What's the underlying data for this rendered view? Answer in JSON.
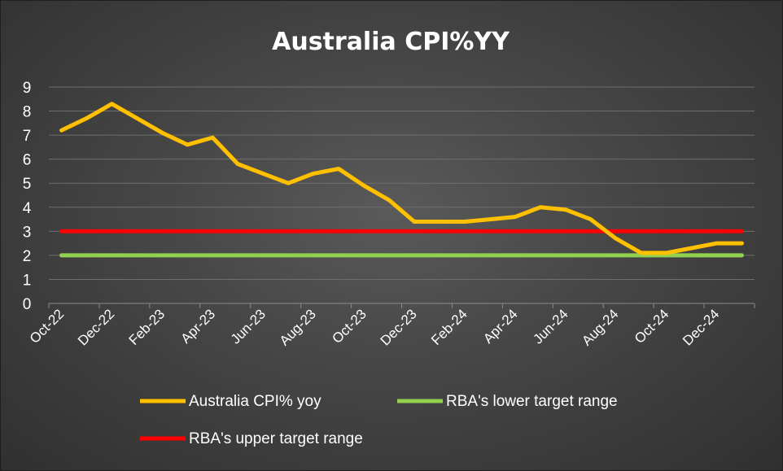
{
  "chart_data": {
    "type": "line",
    "title": "Australia CPI%YY",
    "xlabel": "",
    "ylabel": "",
    "ylim": [
      0,
      9
    ],
    "yticks": [
      "0",
      "1",
      "2",
      "3",
      "4",
      "5",
      "6",
      "7",
      "8",
      "9"
    ],
    "x": [
      "Oct-22",
      "Nov-22",
      "Dec-22",
      "Jan-23",
      "Feb-23",
      "Mar-23",
      "Apr-23",
      "May-23",
      "Jun-23",
      "Jul-23",
      "Aug-23",
      "Sep-23",
      "Oct-23",
      "Nov-23",
      "Dec-23",
      "Jan-24",
      "Feb-24",
      "Mar-24",
      "Apr-24",
      "May-24",
      "Jun-24",
      "Jul-24",
      "Aug-24",
      "Sep-24",
      "Oct-24",
      "Nov-24",
      "Dec-24",
      "Jan-25"
    ],
    "xtick_labels": [
      "Oct-22",
      "Dec-22",
      "Feb-23",
      "Apr-23",
      "Jun-23",
      "Aug-23",
      "Oct-23",
      "Dec-23",
      "Feb-24",
      "Apr-24",
      "Jun-24",
      "Aug-24",
      "Oct-24",
      "Dec-24"
    ],
    "grid": true,
    "legend_position": "bottom",
    "series": [
      {
        "name": "Australia CPI% yoy",
        "color": "#ffc000",
        "values": [
          7.2,
          7.7,
          8.3,
          7.7,
          7.1,
          6.6,
          6.9,
          5.8,
          5.4,
          5.0,
          5.4,
          5.6,
          4.9,
          4.3,
          3.4,
          3.4,
          3.4,
          3.5,
          3.6,
          4.0,
          3.9,
          3.5,
          2.7,
          2.1,
          2.1,
          2.3,
          2.5,
          2.5
        ]
      },
      {
        "name": "RBA's lower target range",
        "color": "#92d050",
        "values": [
          2,
          2,
          2,
          2,
          2,
          2,
          2,
          2,
          2,
          2,
          2,
          2,
          2,
          2,
          2,
          2,
          2,
          2,
          2,
          2,
          2,
          2,
          2,
          2,
          2,
          2,
          2,
          2
        ]
      },
      {
        "name": "RBA's upper target range",
        "color": "#ff0000",
        "values": [
          3,
          3,
          3,
          3,
          3,
          3,
          3,
          3,
          3,
          3,
          3,
          3,
          3,
          3,
          3,
          3,
          3,
          3,
          3,
          3,
          3,
          3,
          3,
          3,
          3,
          3,
          3,
          3
        ]
      }
    ]
  }
}
